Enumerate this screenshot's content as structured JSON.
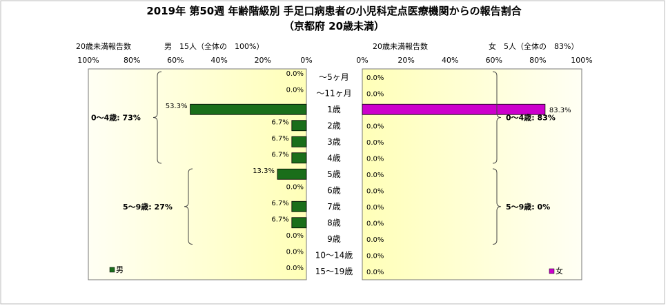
{
  "title_line1": "2019年 第50週 年齢階級別 手足口病患者の小児科定点医療機関からの報告割合",
  "title_line2": "（京都府 20歳未満）",
  "left_panel": {
    "caption": "20歳未満報告数",
    "count_label": "男　15人（全体の　100%）"
  },
  "right_panel": {
    "caption": "20歳未満報告数",
    "count_label": "女　5人（全体の　83%）"
  },
  "colors": {
    "male": "#1a6e1a",
    "female": "#cc00cc",
    "panel_bg_light": "#fffff4",
    "panel_bg_dark": "#ffffb8"
  },
  "left_ticks": [
    "100%",
    "80%",
    "60%",
    "40%",
    "20%",
    "0%"
  ],
  "right_ticks": [
    "0%",
    "20%",
    "40%",
    "60%",
    "80%",
    "100%"
  ],
  "chart_data": {
    "type": "bar",
    "orientation": "horizontal-pyramid",
    "categories": [
      "～5ヶ月",
      "～11ヶ月",
      "1歳",
      "2歳",
      "3歳",
      "4歳",
      "5歳",
      "6歳",
      "7歳",
      "8歳",
      "9歳",
      "10～14歳",
      "15～19歳"
    ],
    "xlim": [
      0,
      100
    ],
    "series": [
      {
        "name": "男",
        "values": [
          0.0,
          0.0,
          53.3,
          6.7,
          6.7,
          6.7,
          13.3,
          0.0,
          6.7,
          6.7,
          0.0,
          0.0,
          0.0
        ],
        "labels": [
          "0.0%",
          "0.0%",
          "53.3%",
          "6.7%",
          "6.7%",
          "6.7%",
          "13.3%",
          "0.0%",
          "6.7%",
          "6.7%",
          "0.0%",
          "0.0%",
          "0.0%"
        ],
        "color": "#1a6e1a"
      },
      {
        "name": "女",
        "values": [
          0.0,
          0.0,
          83.3,
          0.0,
          0.0,
          0.0,
          0.0,
          0.0,
          0.0,
          0.0,
          0.0,
          0.0,
          0.0
        ],
        "labels": [
          "0.0%",
          "0.0%",
          "83.3%",
          "0.0%",
          "0.0%",
          "0.0%",
          "0.0%",
          "0.0%",
          "0.0%",
          "0.0%",
          "0.0%",
          "0.0%",
          "0.0%"
        ],
        "color": "#cc00cc"
      }
    ],
    "group_annotations": {
      "male": [
        {
          "text": "0～4歳: 73%",
          "from": 0,
          "to": 5
        },
        {
          "text": "5～9歳: 27%",
          "from": 6,
          "to": 10
        }
      ],
      "female": [
        {
          "text": "0～4歳: 83%",
          "from": 0,
          "to": 5
        },
        {
          "text": "5～9歳: 0%",
          "from": 6,
          "to": 10
        }
      ]
    }
  }
}
